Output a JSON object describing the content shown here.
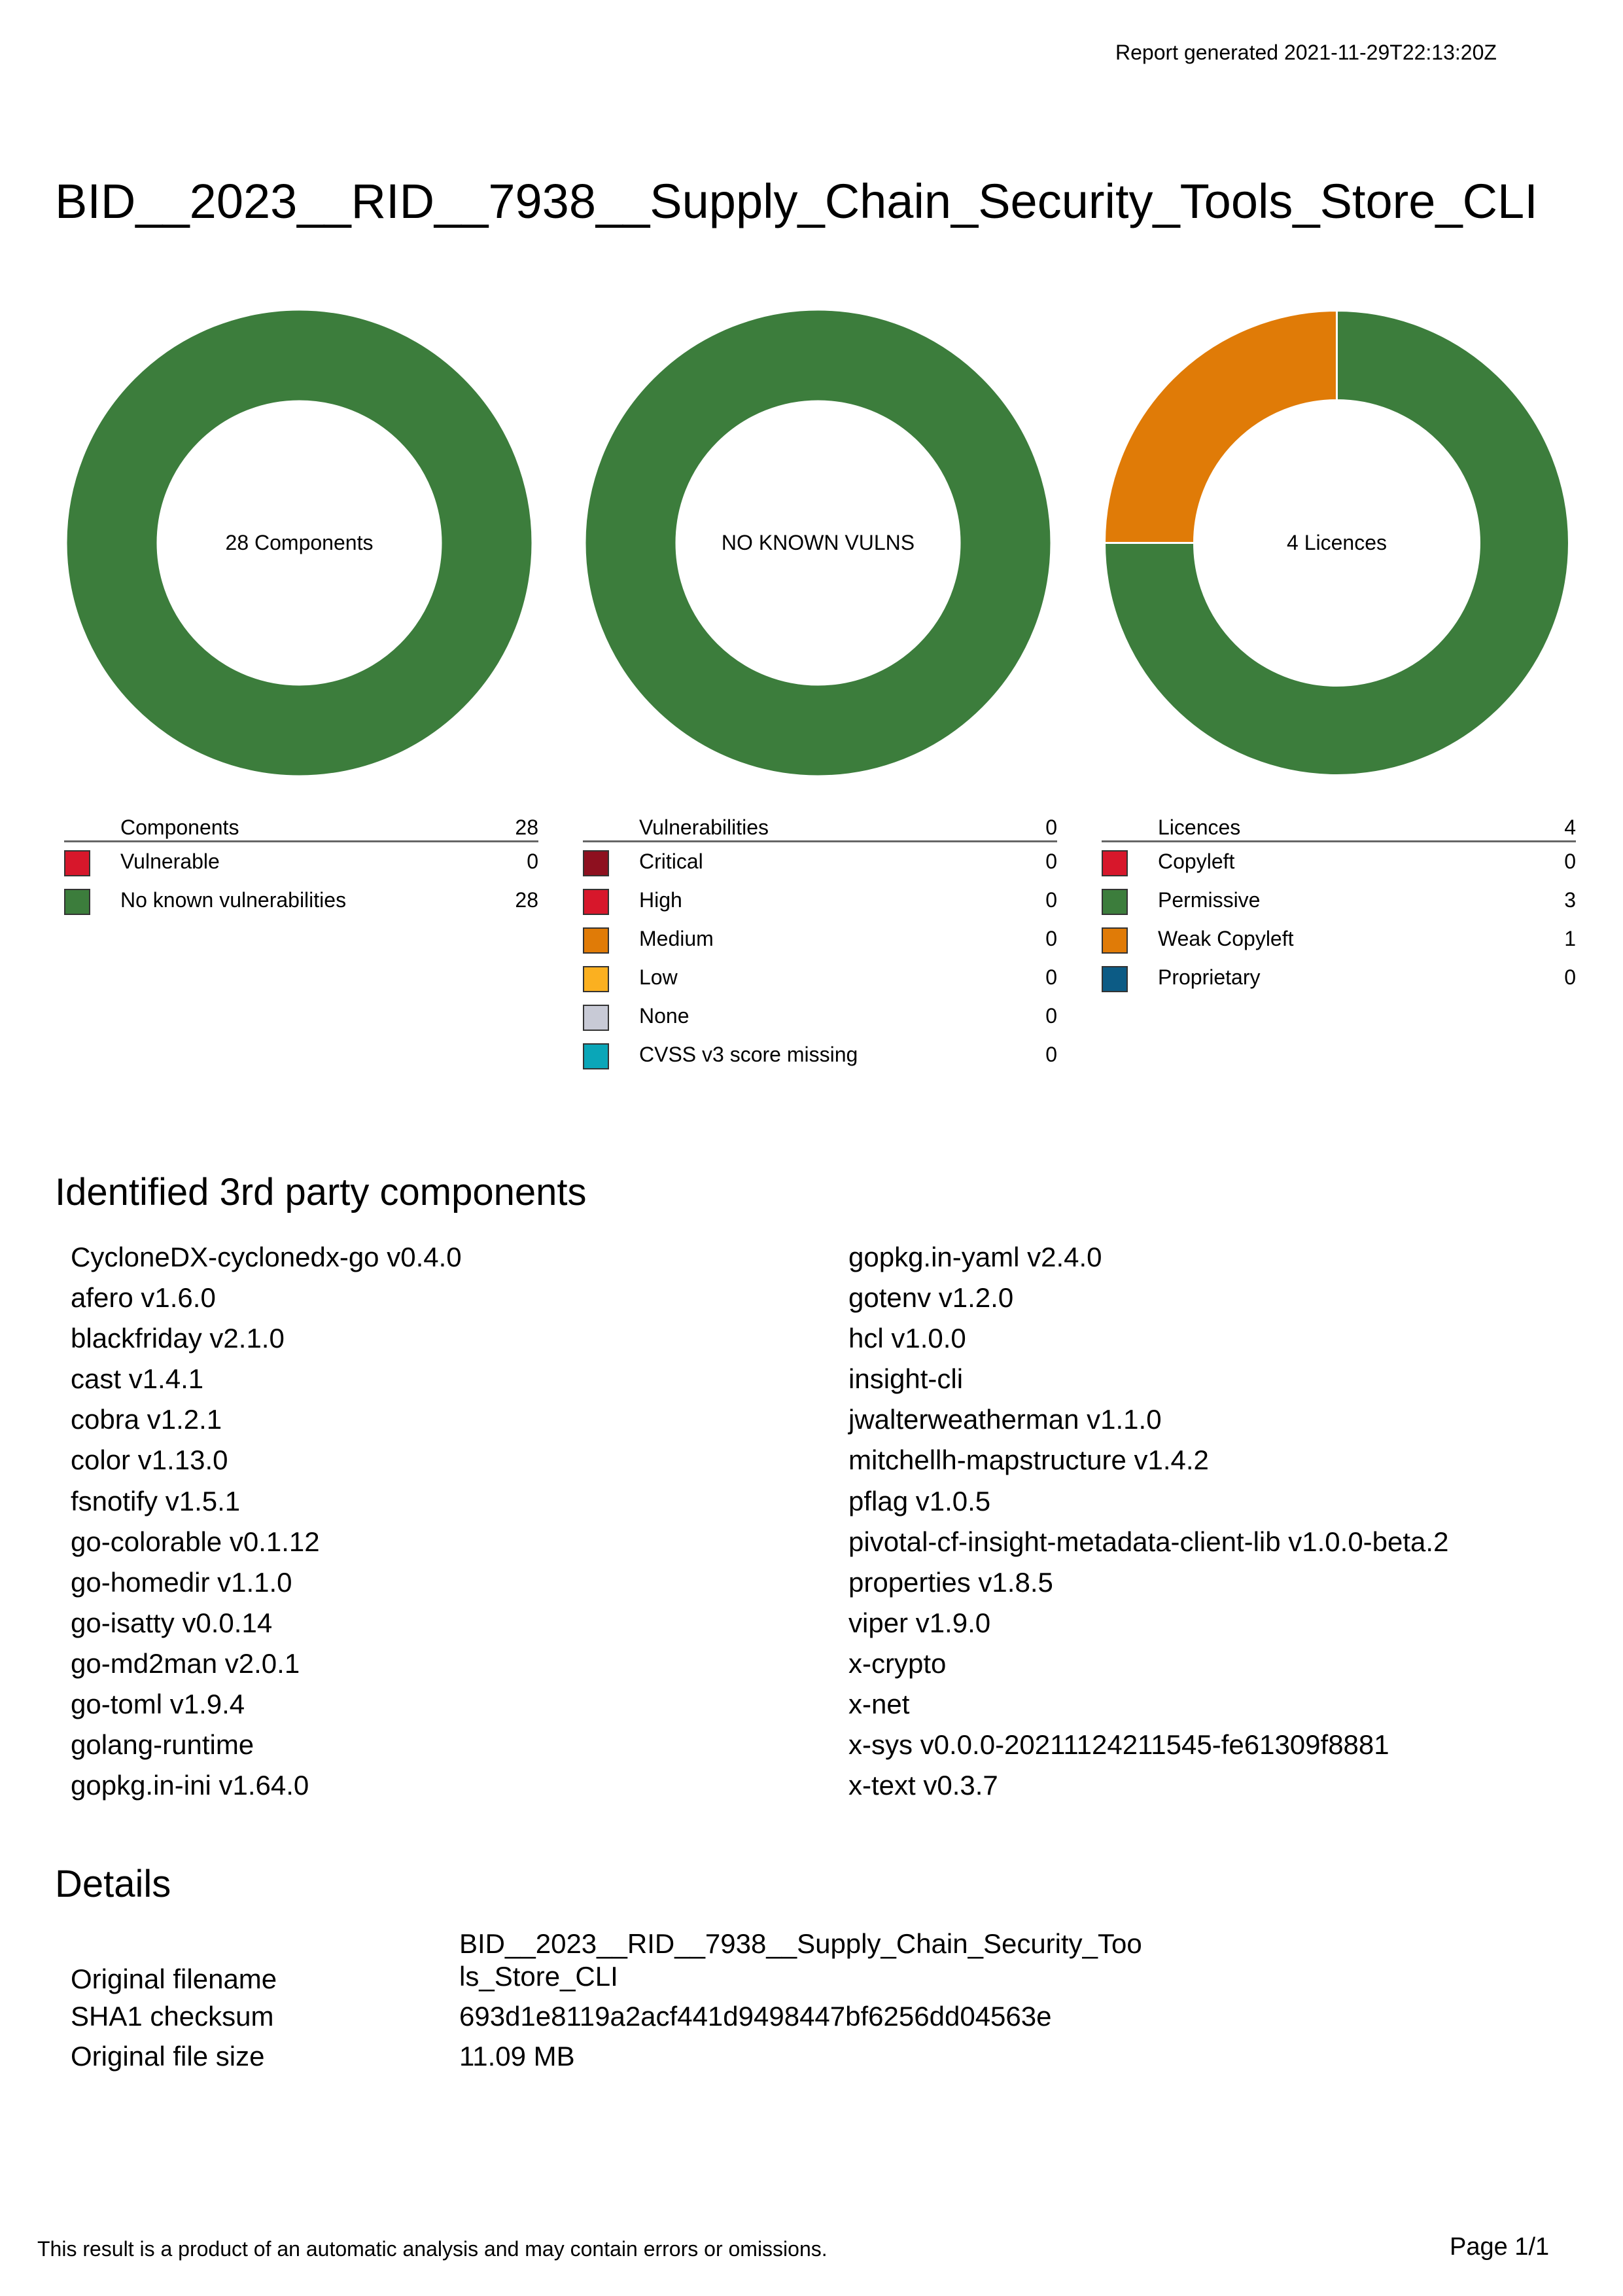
{
  "header": {
    "report_generated": "Report generated 2021-11-29T22:13:20Z",
    "title": "BID__2023__RID__7938__Supply_Chain_Security_Tools_Store_CLI"
  },
  "chart_data": [
    {
      "type": "pie",
      "center_label": "28 Components",
      "slices": [
        {
          "name": "Vulnerable",
          "value": 0,
          "color": "#d7172b"
        },
        {
          "name": "No known vulnerabilities",
          "value": 28,
          "color": "#3c7d3c"
        }
      ]
    },
    {
      "type": "pie",
      "center_label": "NO KNOWN VULNS",
      "empty_color": "#3c7d3c",
      "slices": [
        {
          "name": "Critical",
          "value": 0,
          "color": "#8e101f"
        },
        {
          "name": "High",
          "value": 0,
          "color": "#d7172b"
        },
        {
          "name": "Medium",
          "value": 0,
          "color": "#e07b07"
        },
        {
          "name": "Low",
          "value": 0,
          "color": "#fbb020"
        },
        {
          "name": "None",
          "value": 0,
          "color": "#c8cad6"
        },
        {
          "name": "CVSS v3 score missing",
          "value": 0,
          "color": "#0aa6b8"
        }
      ]
    },
    {
      "type": "pie",
      "center_label": "4 Licences",
      "slices": [
        {
          "name": "Copyleft",
          "value": 0,
          "color": "#d7172b"
        },
        {
          "name": "Permissive",
          "value": 3,
          "color": "#3c7d3c"
        },
        {
          "name": "Weak Copyleft",
          "value": 1,
          "color": "#e07b07"
        },
        {
          "name": "Proprietary",
          "value": 0,
          "color": "#0c5b85"
        }
      ]
    }
  ],
  "legends": {
    "components": {
      "header": "Components",
      "total": "28",
      "rows": [
        {
          "label": "Vulnerable",
          "value": "0",
          "color": "#d7172b"
        },
        {
          "label": "No known vulnerabilities",
          "value": "28",
          "color": "#3c7d3c"
        }
      ]
    },
    "vulns": {
      "header": "Vulnerabilities",
      "total": "0",
      "rows": [
        {
          "label": "Critical",
          "value": "0",
          "color": "#8e101f"
        },
        {
          "label": "High",
          "value": "0",
          "color": "#d7172b"
        },
        {
          "label": "Medium",
          "value": "0",
          "color": "#e07b07"
        },
        {
          "label": "Low",
          "value": "0",
          "color": "#fbb020"
        },
        {
          "label": "None",
          "value": "0",
          "color": "#c8cad6"
        },
        {
          "label": "CVSS v3 score missing",
          "value": "0",
          "color": "#0aa6b8"
        }
      ]
    },
    "licences": {
      "header": "Licences",
      "total": "4",
      "rows": [
        {
          "label": "Copyleft",
          "value": "0",
          "color": "#d7172b"
        },
        {
          "label": "Permissive",
          "value": "3",
          "color": "#3c7d3c"
        },
        {
          "label": "Weak Copyleft",
          "value": "1",
          "color": "#e07b07"
        },
        {
          "label": "Proprietary",
          "value": "0",
          "color": "#0c5b85"
        }
      ]
    }
  },
  "components_section": {
    "heading": "Identified 3rd party components",
    "left": [
      "CycloneDX-cyclonedx-go v0.4.0",
      "afero v1.6.0",
      "blackfriday v2.1.0",
      "cast v1.4.1",
      "cobra v1.2.1",
      "color v1.13.0",
      "fsnotify v1.5.1",
      "go-colorable v0.1.12",
      "go-homedir v1.1.0",
      "go-isatty v0.0.14",
      "go-md2man v2.0.1",
      "go-toml v1.9.4",
      "golang-runtime",
      "gopkg.in-ini v1.64.0"
    ],
    "right": [
      "gopkg.in-yaml v2.4.0",
      "gotenv v1.2.0",
      "hcl v1.0.0",
      "insight-cli",
      "jwalterweatherman v1.1.0",
      "mitchellh-mapstructure v1.4.2",
      "pflag v1.0.5",
      "pivotal-cf-insight-metadata-client-lib v1.0.0-beta.2",
      "properties v1.8.5",
      "viper v1.9.0",
      "x-crypto",
      "x-net",
      "x-sys v0.0.0-20211124211545-fe61309f8881",
      "x-text v0.3.7"
    ]
  },
  "details": {
    "heading": "Details",
    "filename_label": "Original filename",
    "filename_value": "BID__2023__RID__7938__Supply_Chain_Security_Tools_Store_CLI",
    "sha1_label": "SHA1 checksum",
    "sha1_value": "693d1e8119a2acf441d9498447bf6256dd04563e",
    "size_label": "Original file size",
    "size_value": "11.09 MB"
  },
  "footer": {
    "disclaimer": "This result is a product of an automatic analysis and may contain errors or omissions.",
    "page": "Page 1/1"
  }
}
